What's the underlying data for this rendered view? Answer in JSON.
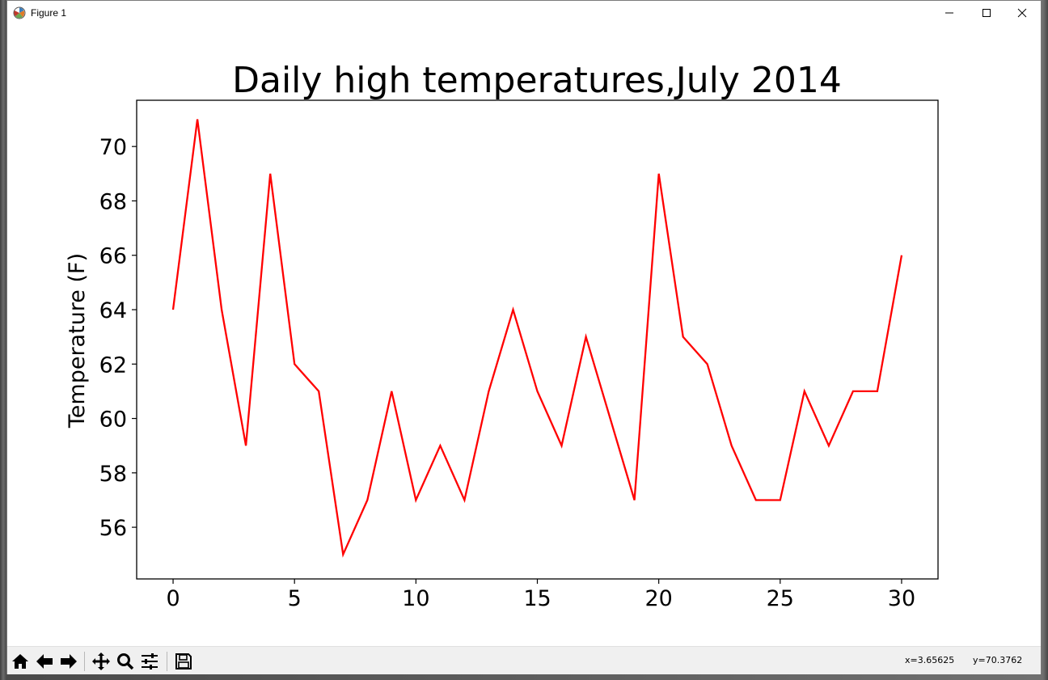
{
  "window": {
    "title": "Figure 1",
    "controls": [
      "minimize-icon",
      "maximize-icon",
      "close-icon"
    ]
  },
  "toolbar": {
    "buttons": [
      "home-icon",
      "back-icon",
      "forward-icon",
      "pan-icon",
      "zoom-icon",
      "configure-subplots-icon",
      "save-icon"
    ],
    "coords_x": "x=3.65625",
    "coords_y": "y=70.3762"
  },
  "colors": {
    "line": "#ff0000",
    "axes": "#000000",
    "background": "#ffffff",
    "toolbar": "#f0f0f0"
  },
  "chart_data": {
    "type": "line",
    "title": "Daily high temperatures,July 2014",
    "xlabel": "",
    "ylabel": "Temperature (F)",
    "xlim": [
      -1.5,
      31.5
    ],
    "ylim": [
      54.1,
      71.7
    ],
    "xticks": [
      0,
      5,
      10,
      15,
      20,
      25,
      30
    ],
    "yticks": [
      56,
      58,
      60,
      62,
      64,
      66,
      68,
      70
    ],
    "grid": false,
    "legend": "none",
    "series": [
      {
        "x": [
          0,
          1,
          2,
          3,
          4,
          5,
          6,
          7,
          8,
          9,
          10,
          11,
          12,
          13,
          14,
          15,
          16,
          17,
          18,
          19,
          20,
          21,
          22,
          23,
          24,
          25,
          26,
          27,
          28,
          29,
          30
        ],
        "values": [
          64,
          71,
          64,
          59,
          69,
          62,
          61,
          55,
          57,
          61,
          57,
          59,
          57,
          61,
          64,
          61,
          59,
          63,
          60,
          57,
          69,
          63,
          62,
          59,
          57,
          57,
          61,
          59,
          61,
          61,
          66
        ]
      }
    ]
  }
}
